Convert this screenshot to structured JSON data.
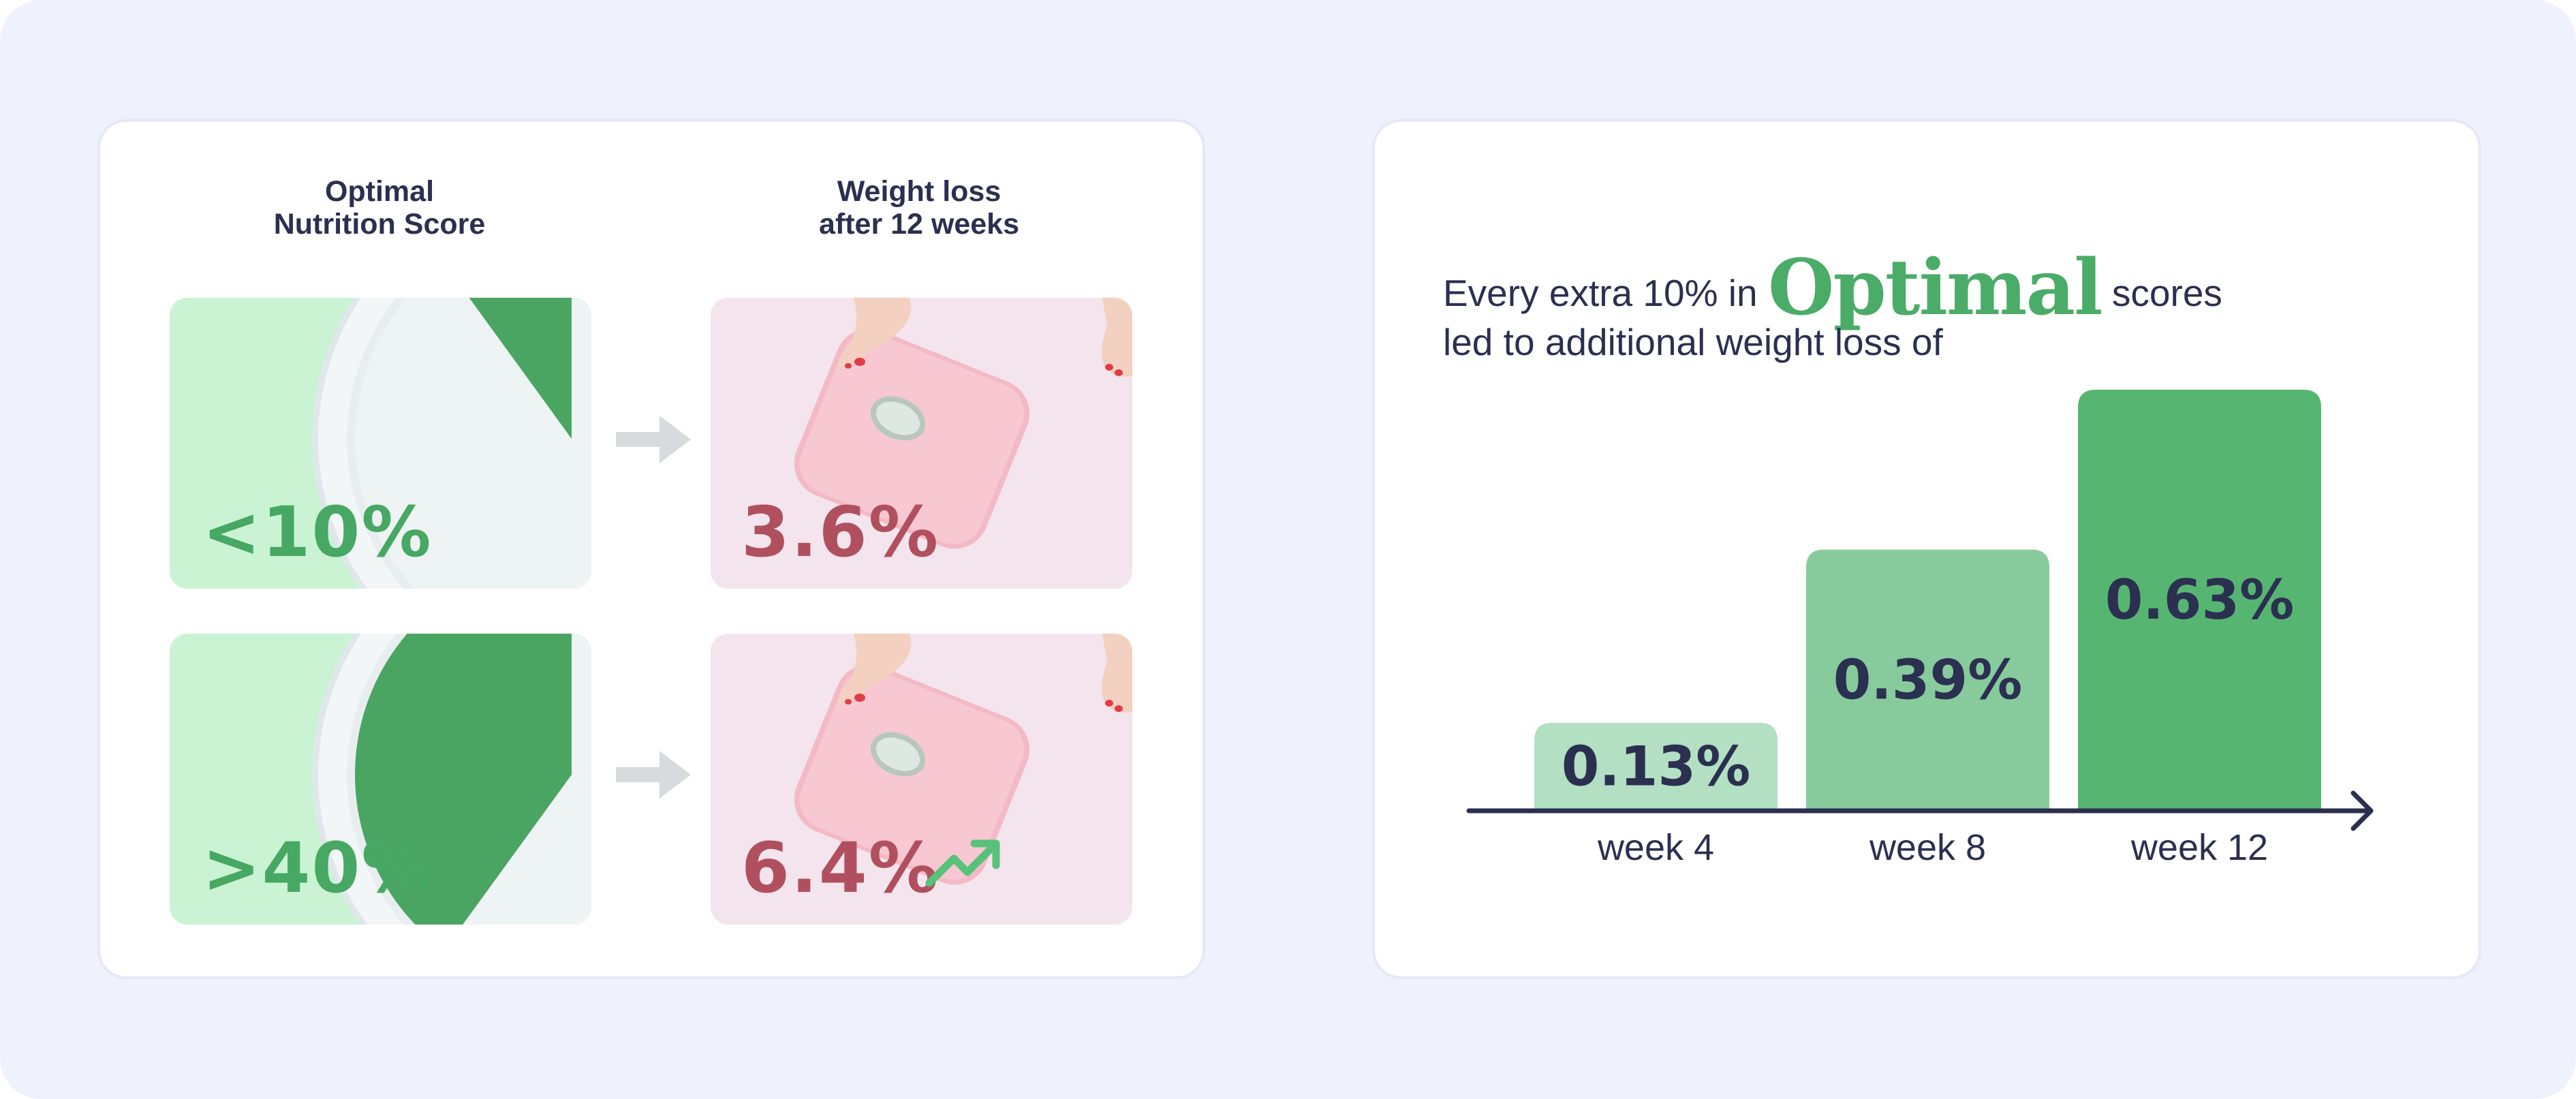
{
  "left_panel": {
    "heading_score": "Optimal\nNutrition Score",
    "heading_loss": "Weight loss\nafter 12 weeks",
    "rows": [
      {
        "score_label": "<10%",
        "score_fraction": 0.1,
        "loss_label": "3.6%",
        "trend_icon": ""
      },
      {
        "score_label": ">40%",
        "score_fraction": 0.4,
        "loss_label": "6.4%",
        "trend_icon": "trending-up-icon"
      }
    ],
    "icons": [
      "plate-pie-icon",
      "arrow-right-icon",
      "bathroom-scale-photo",
      "trending-up-icon"
    ],
    "colors": {
      "score_green": "#46a862",
      "loss_red": "#b0505e",
      "tile_green": "#c9f3d3",
      "tile_pink": "#f4e4ee"
    }
  },
  "right_panel": {
    "headline_before": "Every extra 10%  in ",
    "headline_emphasis": "Optimal",
    "headline_after": " scores",
    "headline_line2": "led to additional weight loss of"
  },
  "chart_data": {
    "type": "bar",
    "categories": [
      "week 4",
      "week 8",
      "week 12"
    ],
    "values": [
      0.13,
      0.39,
      0.63
    ],
    "value_labels": [
      "0.13%",
      "0.39%",
      "0.63%"
    ],
    "unit": "%",
    "colors": [
      "#b3e0c2",
      "#87cb9c",
      "#57b572"
    ],
    "title": "",
    "xlabel": "",
    "ylabel": "",
    "grid": false
  }
}
